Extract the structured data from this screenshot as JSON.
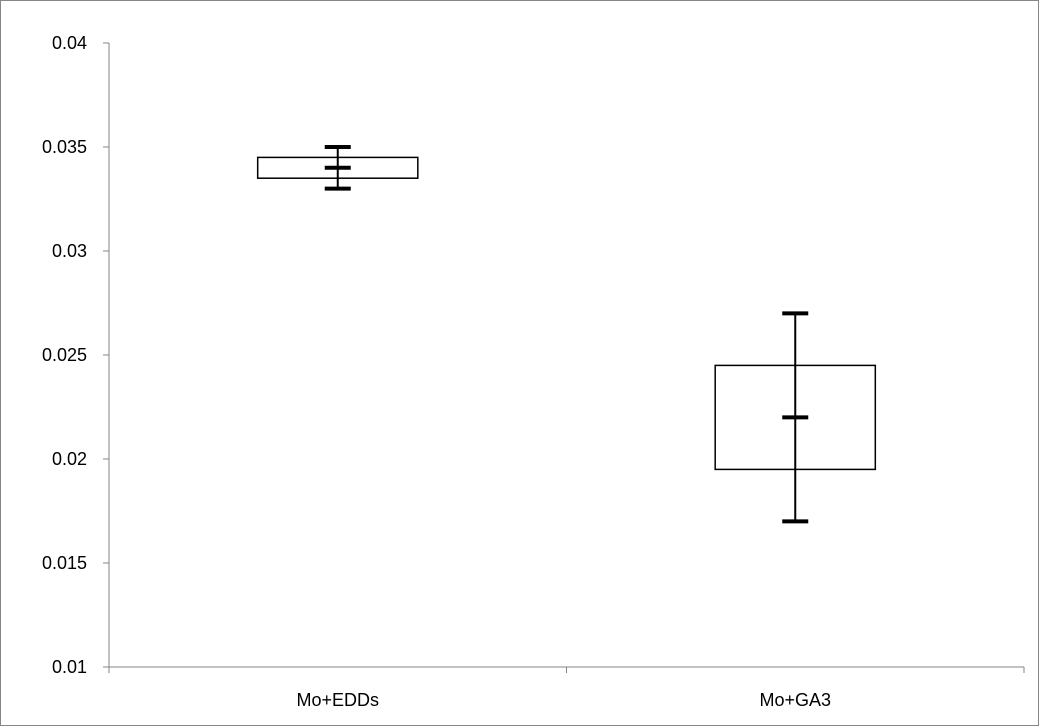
{
  "chart_data": {
    "type": "box",
    "title": "",
    "xlabel": "",
    "ylabel": "",
    "ylim": [
      0.01,
      0.04
    ],
    "yticks": [
      0.01,
      0.015,
      0.02,
      0.025,
      0.03,
      0.035,
      0.04
    ],
    "ytick_labels": [
      "0.01",
      "0.015",
      "0.02",
      "0.025",
      "0.03",
      "0.035",
      "0.04"
    ],
    "categories": [
      "Mo+EDDs",
      "Mo+GA3"
    ],
    "series": [
      {
        "values": [
          {
            "box_low": 0.0335,
            "box_high": 0.0345,
            "median": 0.034,
            "whisker_low": 0.033,
            "whisker_high": 0.035
          },
          {
            "box_low": 0.0195,
            "box_high": 0.0245,
            "median": 0.022,
            "whisker_low": 0.017,
            "whisker_high": 0.027
          }
        ]
      }
    ],
    "grid": false,
    "legend": "none"
  }
}
